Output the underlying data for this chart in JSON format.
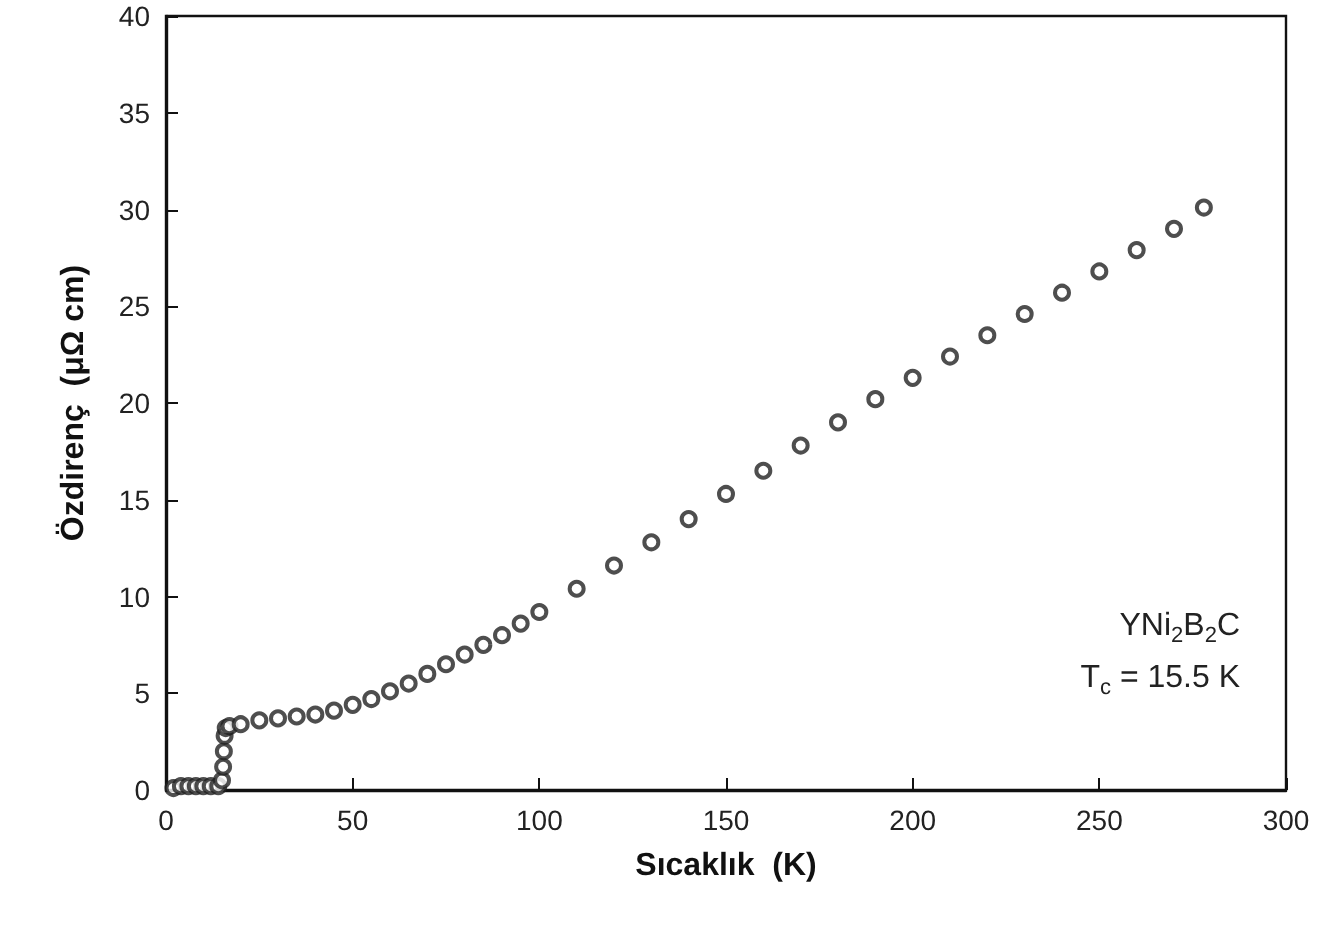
{
  "chart_data": {
    "type": "scatter",
    "xlabel": "Sıcaklık  (K)",
    "ylabel": "Özdirenç  (μΩ cm)",
    "xlim": [
      0,
      300
    ],
    "xticks": [
      0,
      50,
      100,
      150,
      200,
      250,
      300
    ],
    "ylim": [
      0,
      40
    ],
    "yticks": [
      0,
      5,
      10,
      15,
      20,
      25,
      30,
      35,
      40
    ],
    "grid": false,
    "marker": "circle",
    "annotations": [
      "YNi$_{2}$B$_{2}$C",
      "T$_{c}$ = 15.5 K"
    ],
    "series": [
      {
        "color": "#222222",
        "x": [
          2,
          4,
          6,
          8,
          10,
          12,
          14,
          15,
          15.3,
          15.5,
          15.7,
          16,
          17,
          20,
          25,
          30,
          35,
          40,
          45,
          50,
          55,
          60,
          65,
          70,
          75,
          80,
          85,
          90,
          95,
          100,
          110,
          120,
          130,
          140,
          150,
          160,
          170,
          180,
          190,
          200,
          210,
          220,
          230,
          240,
          250,
          260,
          270,
          278
        ],
        "values": [
          0.1,
          0.2,
          0.2,
          0.2,
          0.2,
          0.2,
          0.2,
          0.5,
          1.2,
          2.0,
          2.8,
          3.2,
          3.3,
          3.4,
          3.6,
          3.7,
          3.8,
          3.9,
          4.1,
          4.4,
          4.7,
          5.1,
          5.5,
          6.0,
          6.5,
          7.0,
          7.5,
          8.0,
          8.6,
          9.2,
          10.4,
          11.6,
          12.8,
          14.0,
          15.3,
          16.5,
          17.8,
          19.0,
          20.2,
          21.3,
          22.4,
          23.5,
          24.6,
          25.7,
          26.8,
          27.9,
          29.0,
          30.1
        ]
      }
    ]
  }
}
